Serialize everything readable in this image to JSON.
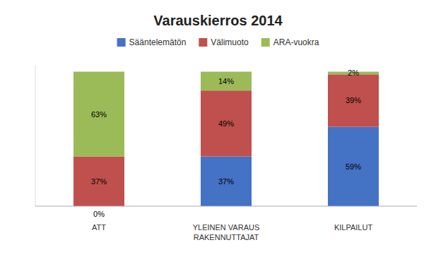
{
  "chart_data": {
    "type": "bar",
    "stacked": true,
    "title": "Varauskierros 2014",
    "categories": [
      "ATT",
      "YLEINEN VARAUS\nRAKENNUTTAJAT",
      "KILPAILUT"
    ],
    "series": [
      {
        "name": "Sääntelemätön",
        "color": "#4472C4",
        "values": [
          0,
          37,
          59
        ],
        "value_labels": [
          "0%",
          "37%",
          "59%"
        ]
      },
      {
        "name": "Välimuoto",
        "color": "#C0504D",
        "values": [
          37,
          49,
          39
        ],
        "value_labels": [
          "37%",
          "49%",
          "39%"
        ]
      },
      {
        "name": "ARA-vuokra",
        "color": "#9BBB59",
        "values": [
          63,
          14,
          2
        ],
        "value_labels": [
          "63%",
          "14%",
          "2%"
        ]
      }
    ],
    "ylim": [
      0,
      105
    ],
    "data_labels": true,
    "tick_labels": "x",
    "grid": false,
    "legend": "top"
  }
}
